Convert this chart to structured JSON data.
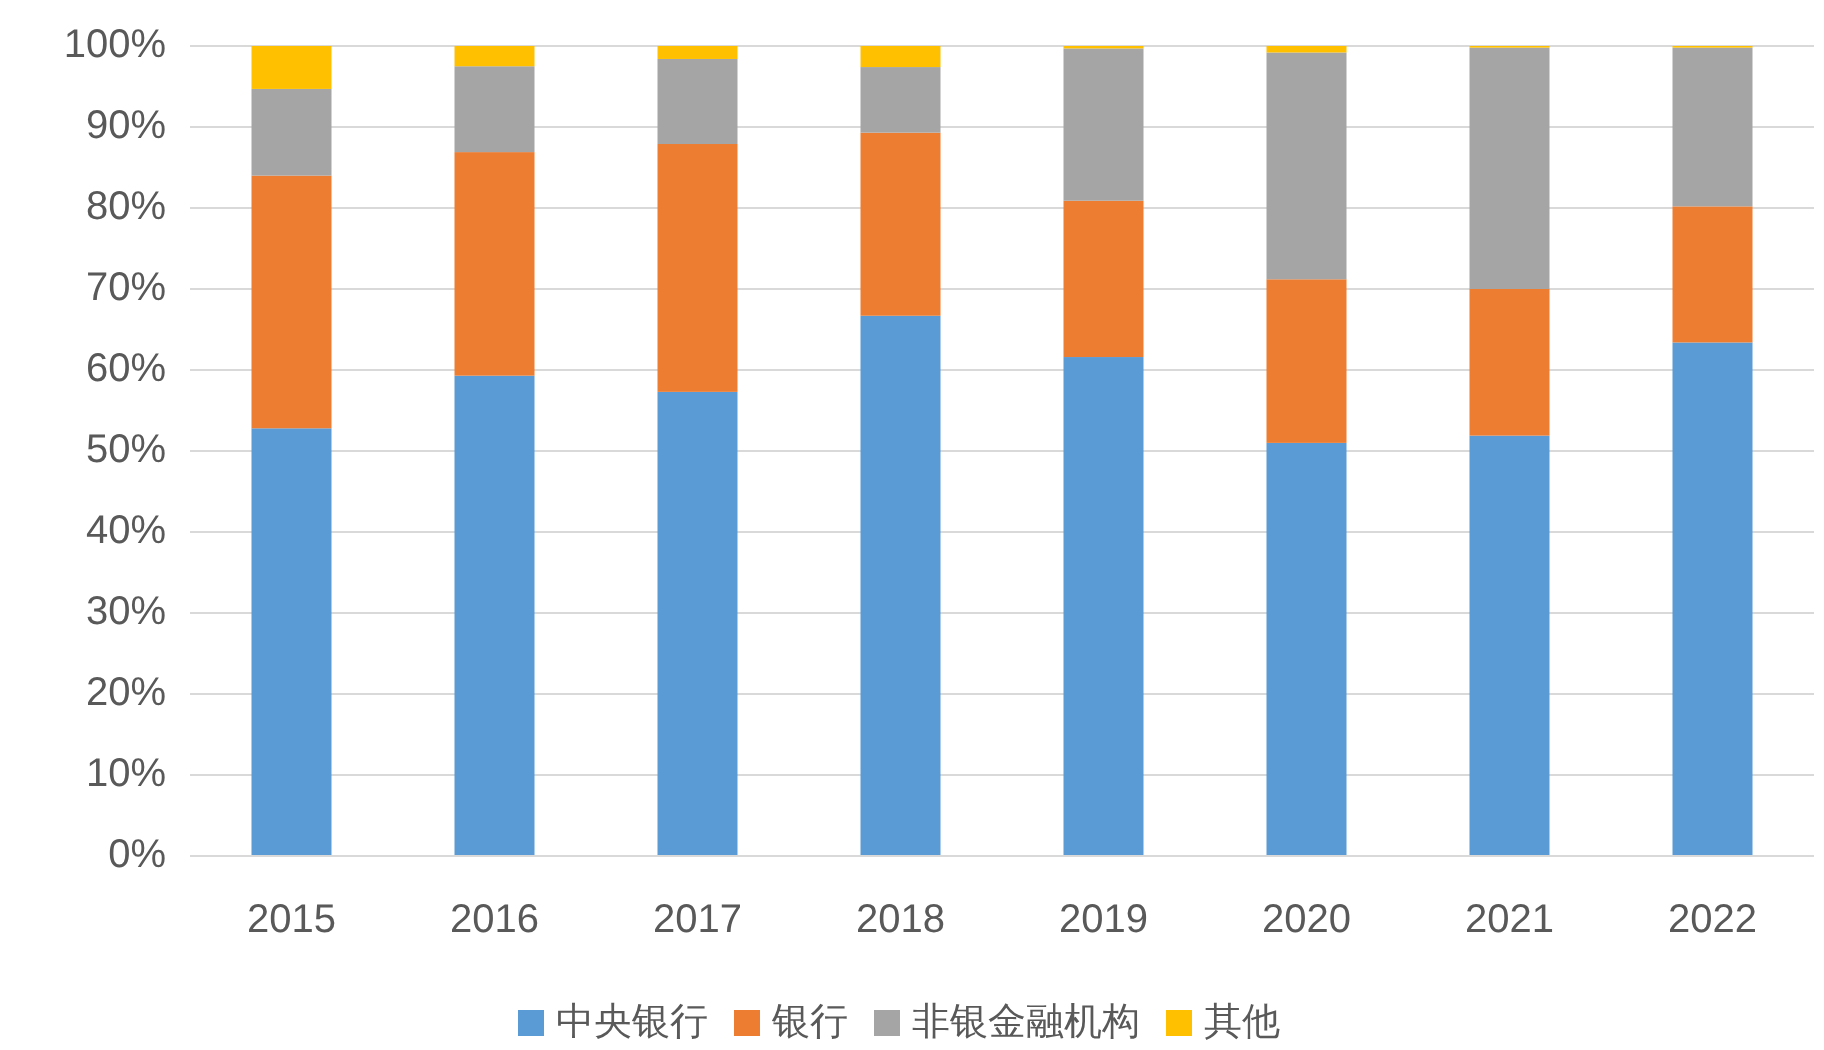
{
  "chart_data": {
    "type": "bar",
    "stacked": true,
    "categories": [
      "2015",
      "2016",
      "2017",
      "2018",
      "2019",
      "2020",
      "2021",
      "2022"
    ],
    "series": [
      {
        "name": "中央银行",
        "color": "#5b9bd5",
        "values": [
          52.8,
          59.3,
          57.3,
          66.7,
          61.6,
          51.0,
          51.9,
          63.4
        ]
      },
      {
        "name": "银行",
        "color": "#ed7d31",
        "values": [
          31.2,
          27.6,
          30.6,
          22.6,
          19.3,
          20.2,
          18.1,
          16.8
        ]
      },
      {
        "name": "非银金融机构",
        "color": "#a5a5a5",
        "values": [
          10.7,
          10.6,
          10.5,
          8.1,
          18.8,
          28.0,
          29.8,
          19.6
        ]
      },
      {
        "name": "其他",
        "color": "#ffc000",
        "values": [
          5.3,
          2.5,
          1.6,
          2.6,
          0.3,
          0.8,
          0.2,
          0.2
        ]
      }
    ],
    "ylim": [
      0,
      100
    ],
    "yticks": [
      {
        "value": 0,
        "label": "0%"
      },
      {
        "value": 10,
        "label": "10%"
      },
      {
        "value": 20,
        "label": "20%"
      },
      {
        "value": 30,
        "label": "30%"
      },
      {
        "value": 40,
        "label": "40%"
      },
      {
        "value": 50,
        "label": "50%"
      },
      {
        "value": 60,
        "label": "60%"
      },
      {
        "value": 70,
        "label": "70%"
      },
      {
        "value": 80,
        "label": "80%"
      },
      {
        "value": 90,
        "label": "90%"
      },
      {
        "value": 100,
        "label": "100%"
      }
    ],
    "grid": "y",
    "legend": "bottom"
  }
}
